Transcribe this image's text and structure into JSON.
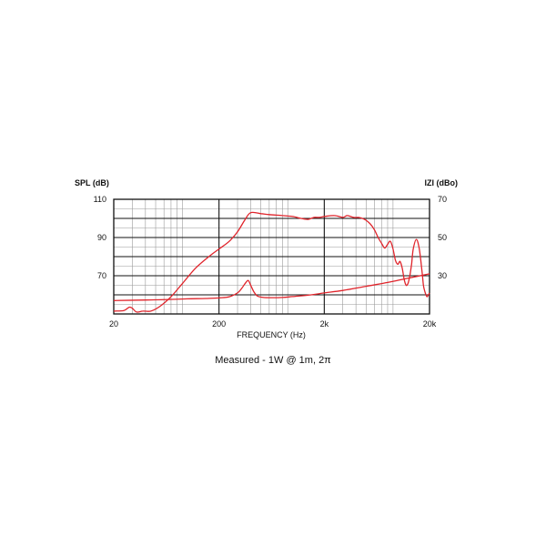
{
  "chart_data": {
    "type": "line",
    "title": "",
    "xlabel": "FREQUENCY (Hz)",
    "xscale": "log",
    "xlim": [
      20,
      20000
    ],
    "x_ticks": [
      {
        "value": 20,
        "label": "20"
      },
      {
        "value": 200,
        "label": "200"
      },
      {
        "value": 2000,
        "label": "2k"
      },
      {
        "value": 20000,
        "label": "20k"
      }
    ],
    "ylabel_left": "SPL (dB)",
    "ylim_left": [
      50,
      110
    ],
    "y_ticks_left": [
      {
        "value": 110,
        "label": "110"
      },
      {
        "value": 90,
        "label": "90"
      },
      {
        "value": 70,
        "label": "70"
      }
    ],
    "ylabel_right": "IZI (dBo)",
    "ylim_right": [
      10,
      70
    ],
    "y_ticks_right": [
      {
        "value": 70,
        "label": "70"
      },
      {
        "value": 50,
        "label": "50"
      },
      {
        "value": 30,
        "label": "30"
      }
    ],
    "grid": true,
    "line_color": "#e0242b",
    "series": [
      {
        "axis": "left",
        "x": [
          20,
          25,
          28,
          30,
          33,
          38,
          45,
          55,
          70,
          90,
          120,
          160,
          200,
          250,
          300,
          350,
          400,
          500,
          600,
          800,
          1000,
          1200,
          1400,
          1600,
          1800,
          2000,
          2500,
          3000,
          3300,
          3800,
          4200,
          4600,
          5000,
          5500,
          6000,
          6500,
          7000,
          7500,
          8000,
          8500,
          9000,
          9500,
          10000,
          10500,
          11000,
          11500,
          12000,
          12500,
          13000,
          13500,
          14000,
          15000,
          16000,
          17000,
          17500,
          18000,
          18500,
          19000,
          19500,
          20000
        ],
        "y": [
          51.5,
          51.8,
          53.5,
          53,
          51,
          51.5,
          51.5,
          54,
          59,
          66,
          74,
          80,
          84,
          88,
          93,
          99,
          103,
          102.5,
          102,
          101.5,
          101,
          100,
          99.5,
          100.5,
          100.5,
          101,
          101.5,
          100.5,
          101.5,
          100.5,
          100.5,
          100,
          99,
          97,
          94,
          90,
          87,
          84.5,
          86.5,
          88,
          84,
          78,
          76,
          77.5,
          74,
          68,
          65,
          66,
          70,
          76,
          84,
          89,
          84,
          72,
          65,
          62,
          60,
          59,
          60,
          61
        ]
      },
      {
        "axis": "right",
        "x": [
          20,
          40,
          70,
          100,
          150,
          200,
          250,
          300,
          330,
          360,
          380,
          400,
          430,
          460,
          500,
          600,
          800,
          1000,
          1500,
          2000,
          3000,
          5000,
          8000,
          12000,
          20000
        ],
        "y": [
          17,
          17.3,
          17.6,
          17.9,
          18.1,
          18.4,
          19,
          21,
          23.5,
          26.5,
          27.5,
          25,
          21.5,
          19.5,
          18.8,
          18.5,
          18.6,
          19.1,
          20,
          21,
          22.3,
          24.5,
          26.5,
          28.5,
          31
        ]
      }
    ]
  },
  "caption": "Measured - 1W @ 1m, 2π"
}
